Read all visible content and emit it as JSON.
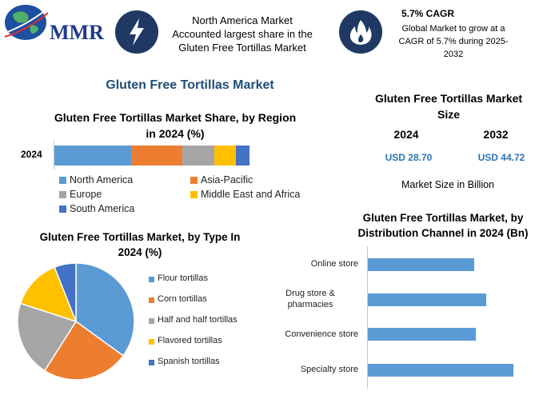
{
  "brand": {
    "name": "MMR"
  },
  "highlight1": {
    "icon": "lightning-icon",
    "text": "North America Market Accounted largest share in the Gluten Free Tortillas Market"
  },
  "highlight2": {
    "icon": "flame-icon",
    "title": "5.7% CAGR",
    "text": "Global Market to grow at a CAGR of 5.7% during 2025-2032"
  },
  "main_title": "Gluten Free Tortillas Market",
  "colors": {
    "blue": "#5b9bd5",
    "orange": "#ed7d31",
    "gray": "#a5a5a5",
    "yellow": "#ffc000",
    "darkblue": "#4472c4",
    "navy": "#1f3864",
    "title_blue": "#1f4e79",
    "value_blue": "#2e75b6"
  },
  "chart_data": [
    {
      "type": "bar",
      "orientation": "horizontal-stacked",
      "title": "Gluten Free Tortillas Market Share, by Region in 2024 (%)",
      "categories": [
        "2024"
      ],
      "series": [
        {
          "name": "North America",
          "values": [
            39.5
          ],
          "color": "#5b9bd5"
        },
        {
          "name": "Asia-Pacific",
          "values": [
            26
          ],
          "color": "#ed7d31"
        },
        {
          "name": "Europe",
          "values": [
            16.5
          ],
          "color": "#a5a5a5"
        },
        {
          "name": "Middle East and Africa",
          "values": [
            11
          ],
          "color": "#ffc000"
        },
        {
          "name": "South America",
          "values": [
            7
          ],
          "color": "#4472c4"
        }
      ]
    },
    {
      "type": "table",
      "title": "Gluten Free Tortillas Market Size",
      "columns": [
        "2024",
        "2032"
      ],
      "values": [
        "USD 28.70",
        "USD 44.72"
      ],
      "note": "Market Size in Billion"
    },
    {
      "type": "pie",
      "title": "Gluten Free Tortillas Market, by Type In 2024 (%)",
      "labels": [
        "Flour tortillas",
        "Corn tortillas",
        "Half and half tortillas",
        "Flavored tortillas",
        "Spanish tortillas"
      ],
      "values": [
        35,
        24,
        21,
        14,
        6
      ],
      "colors": [
        "#5b9bd5",
        "#ed7d31",
        "#a5a5a5",
        "#ffc000",
        "#4472c4"
      ]
    },
    {
      "type": "bar",
      "orientation": "horizontal",
      "title": "Gluten Free Tortillas Market, by Distribution Channel in 2024 (Bn)",
      "categories": [
        "Online store",
        "Drug store & pharmacies",
        "Convenience store",
        "Specialty store"
      ],
      "values": [
        6.2,
        6.9,
        6.3,
        8.5
      ],
      "xlim": [
        0,
        10
      ],
      "color": "#5b9bd5"
    }
  ]
}
